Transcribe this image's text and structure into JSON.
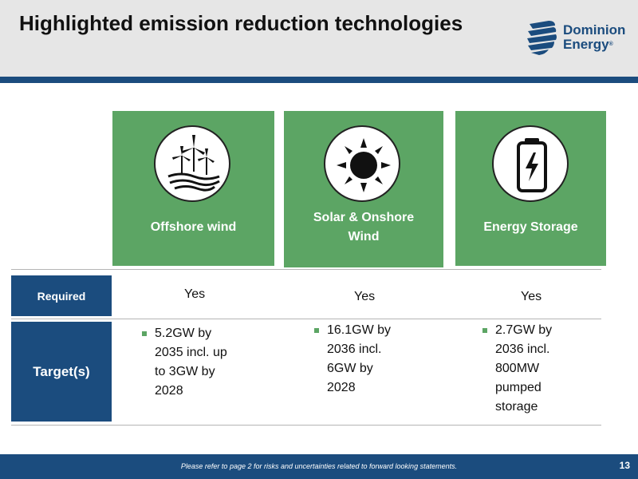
{
  "slide": {
    "title": "Highlighted emission reduction technologies",
    "page_number": "13",
    "footer_note": "Please refer to page 2 for risks and uncertainties related to forward looking statements."
  },
  "logo": {
    "line1": "Dominion",
    "line2": "Energy",
    "mark": "®"
  },
  "technologies": [
    {
      "icon": "wind-turbines-icon",
      "label": "Offshore wind"
    },
    {
      "icon": "sun-icon",
      "label_line1": "Solar & Onshore",
      "label_line2": "Wind"
    },
    {
      "icon": "battery-icon",
      "label": "Energy Storage"
    }
  ],
  "table": {
    "required": {
      "header": "Required",
      "values": [
        "Yes",
        "Yes",
        "Yes"
      ]
    },
    "targets": {
      "header": "Target(s)",
      "values": [
        [
          "5.2GW by",
          "2035 incl. up",
          "to 3GW by",
          "2028"
        ],
        [
          "16.1GW by",
          "2036 incl.",
          "6GW by",
          "2028"
        ],
        [
          "2.7GW by",
          "2036 incl.",
          "800MW",
          "pumped",
          "storage"
        ]
      ]
    }
  },
  "colors": {
    "green": "#5ca564",
    "navy": "#1b4c7e",
    "header_gray": "#e6e6e6"
  }
}
